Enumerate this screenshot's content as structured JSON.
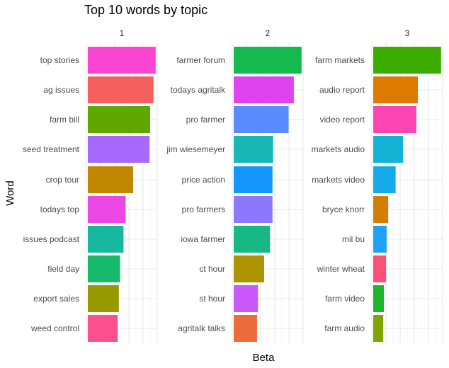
{
  "chart_data": {
    "type": "bar",
    "orientation": "horizontal",
    "title": "Top 10 words by topic",
    "xlabel": "Beta",
    "ylabel": "Word",
    "grid": true,
    "facets": [
      {
        "label": "1",
        "categories": [
          "top stories",
          "ag issues",
          "farm bill",
          "seed treatment",
          "crop tour",
          "todays top",
          "issues podcast",
          "field day",
          "export sales",
          "weed control"
        ],
        "values": [
          0.0224,
          0.0217,
          0.0206,
          0.0204,
          0.0151,
          0.0127,
          0.012,
          0.0109,
          0.0105,
          0.0101
        ],
        "colors": [
          "#F945D2",
          "#F5605F",
          "#5EA800",
          "#A66BFD",
          "#C08600",
          "#EB48E3",
          "#16B8A0",
          "#17BA6A",
          "#969A00",
          "#FC4F8E"
        ]
      },
      {
        "label": "2",
        "categories": [
          "farmer forum",
          "todays agritalk",
          "pro farmer",
          "jim wiesemeyer",
          "price action",
          "pro farmers",
          "iowa farmer",
          "ct hour",
          "st hour",
          "agritalk talks"
        ],
        "values": [
          0.0224,
          0.0199,
          0.0182,
          0.0132,
          0.013,
          0.013,
          0.0122,
          0.0103,
          0.0083,
          0.008
        ],
        "colors": [
          "#15BA4E",
          "#DF43F0",
          "#5A8BFD",
          "#19B6B7",
          "#1497FC",
          "#8C78FD",
          "#16B983",
          "#AE9300",
          "#CB58F9",
          "#EC6B3B"
        ]
      },
      {
        "label": "3",
        "categories": [
          "farm markets",
          "audio report",
          "video report",
          "markets audio",
          "markets video",
          "bryce knorr",
          "mil bu",
          "winter wheat",
          "farm video",
          "farm audio"
        ],
        "values": [
          0.0224,
          0.0149,
          0.0144,
          0.0101,
          0.0077,
          0.0053,
          0.0048,
          0.0046,
          0.0039,
          0.0037
        ],
        "colors": [
          "#3AAD00",
          "#DF7A00",
          "#FA45B3",
          "#13B3D5",
          "#13ACE8",
          "#D37E00",
          "#1FA1F9",
          "#FD5078",
          "#1EB52C",
          "#80A300"
        ]
      }
    ]
  }
}
